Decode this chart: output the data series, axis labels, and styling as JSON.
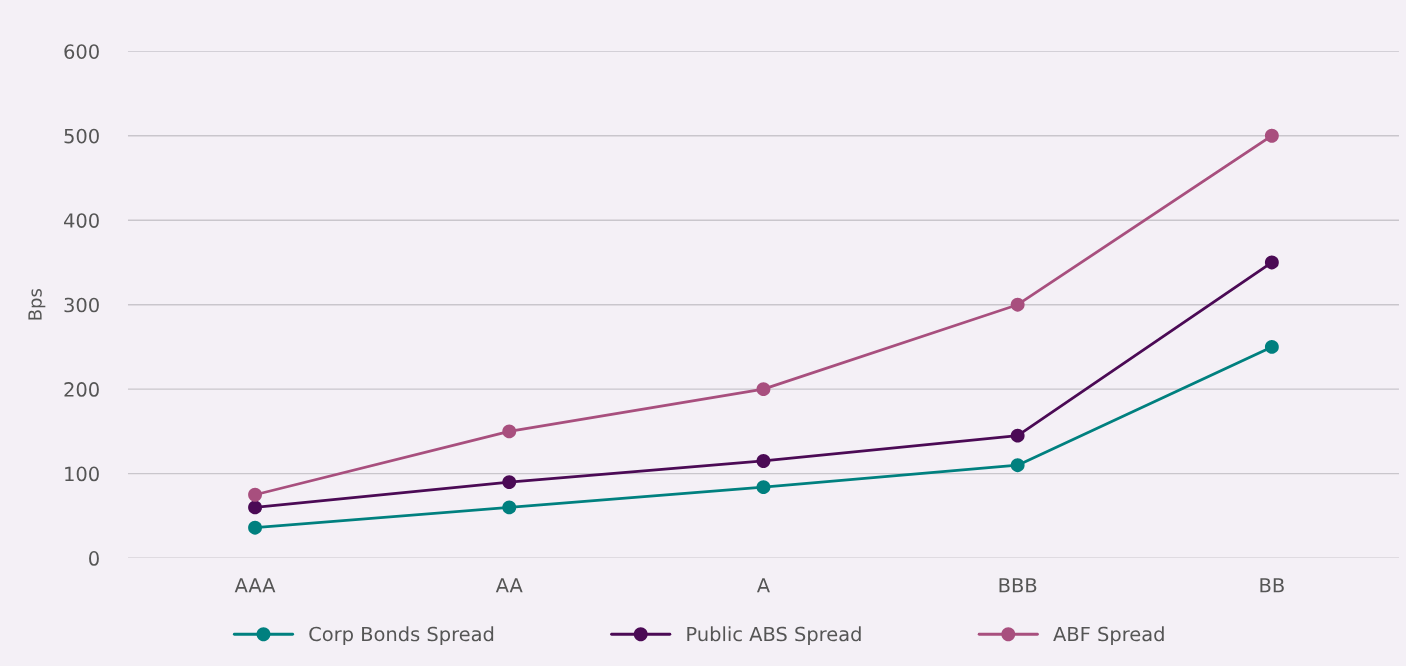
{
  "chart_data": {
    "type": "line",
    "ylabel": "Bps",
    "categories": [
      "AAA",
      "AA",
      "A",
      "BBB",
      "BB"
    ],
    "series": [
      {
        "name": "Corp Bonds Spread",
        "color": "#00807f",
        "values": [
          36,
          60,
          84,
          110,
          250
        ]
      },
      {
        "name": "Public ABS Spread",
        "color": "#4b0a55",
        "values": [
          60,
          90,
          115,
          145,
          350
        ]
      },
      {
        "name": "ABF Spread",
        "color": "#a84f7e",
        "values": [
          75,
          150,
          200,
          300,
          500
        ]
      }
    ],
    "ylim": [
      0,
      600
    ],
    "yticks": [
      0,
      100,
      200,
      300,
      400,
      500,
      600
    ],
    "grid": "y",
    "legend": "bottom",
    "marker": "circle",
    "line_style": "solid"
  }
}
